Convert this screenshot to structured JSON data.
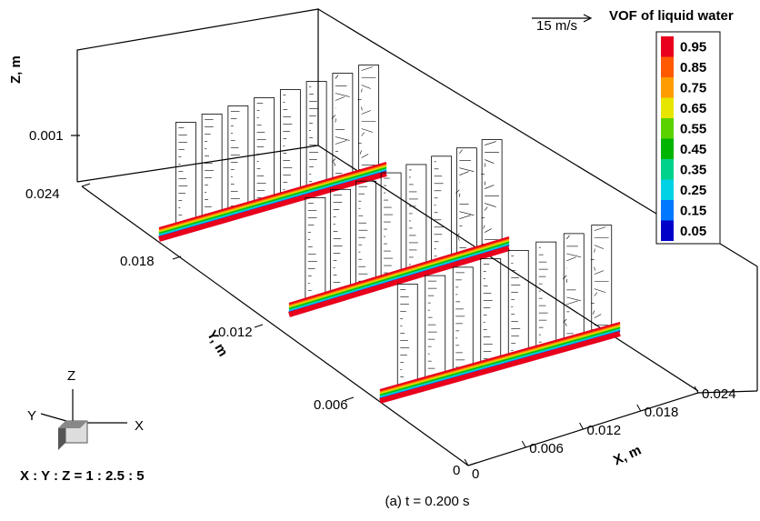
{
  "figure": {
    "caption": "(a) t = 0.200 s",
    "scale_ratio": "X : Y : Z = 1 : 2.5 : 5",
    "reference_vector": "15 m/s",
    "legend": {
      "title": "VOF of liquid water",
      "levels": [
        {
          "label": "0.95",
          "color": "#e8001c"
        },
        {
          "label": "0.85",
          "color": "#ff5a00"
        },
        {
          "label": "0.75",
          "color": "#ff9d00"
        },
        {
          "label": "0.65",
          "color": "#e6e600"
        },
        {
          "label": "0.55",
          "color": "#5ad200"
        },
        {
          "label": "0.45",
          "color": "#00b400"
        },
        {
          "label": "0.35",
          "color": "#00d28c"
        },
        {
          "label": "0.25",
          "color": "#00d2e6"
        },
        {
          "label": "0.15",
          "color": "#0078ff"
        },
        {
          "label": "0.05",
          "color": "#0000c8"
        }
      ]
    },
    "axes": {
      "x": {
        "label": "X, m",
        "ticks": [
          "0",
          "0.006",
          "0.012",
          "0.018",
          "0.024"
        ]
      },
      "y": {
        "label": "Y, m",
        "ticks": [
          "0",
          "0.006",
          "0.012",
          "0.018",
          "0.024"
        ]
      },
      "z": {
        "label": "Z, m",
        "ticks": [
          "0.001"
        ]
      }
    },
    "triad": {
      "x": "X",
      "y": "Y",
      "z": "Z"
    }
  }
}
